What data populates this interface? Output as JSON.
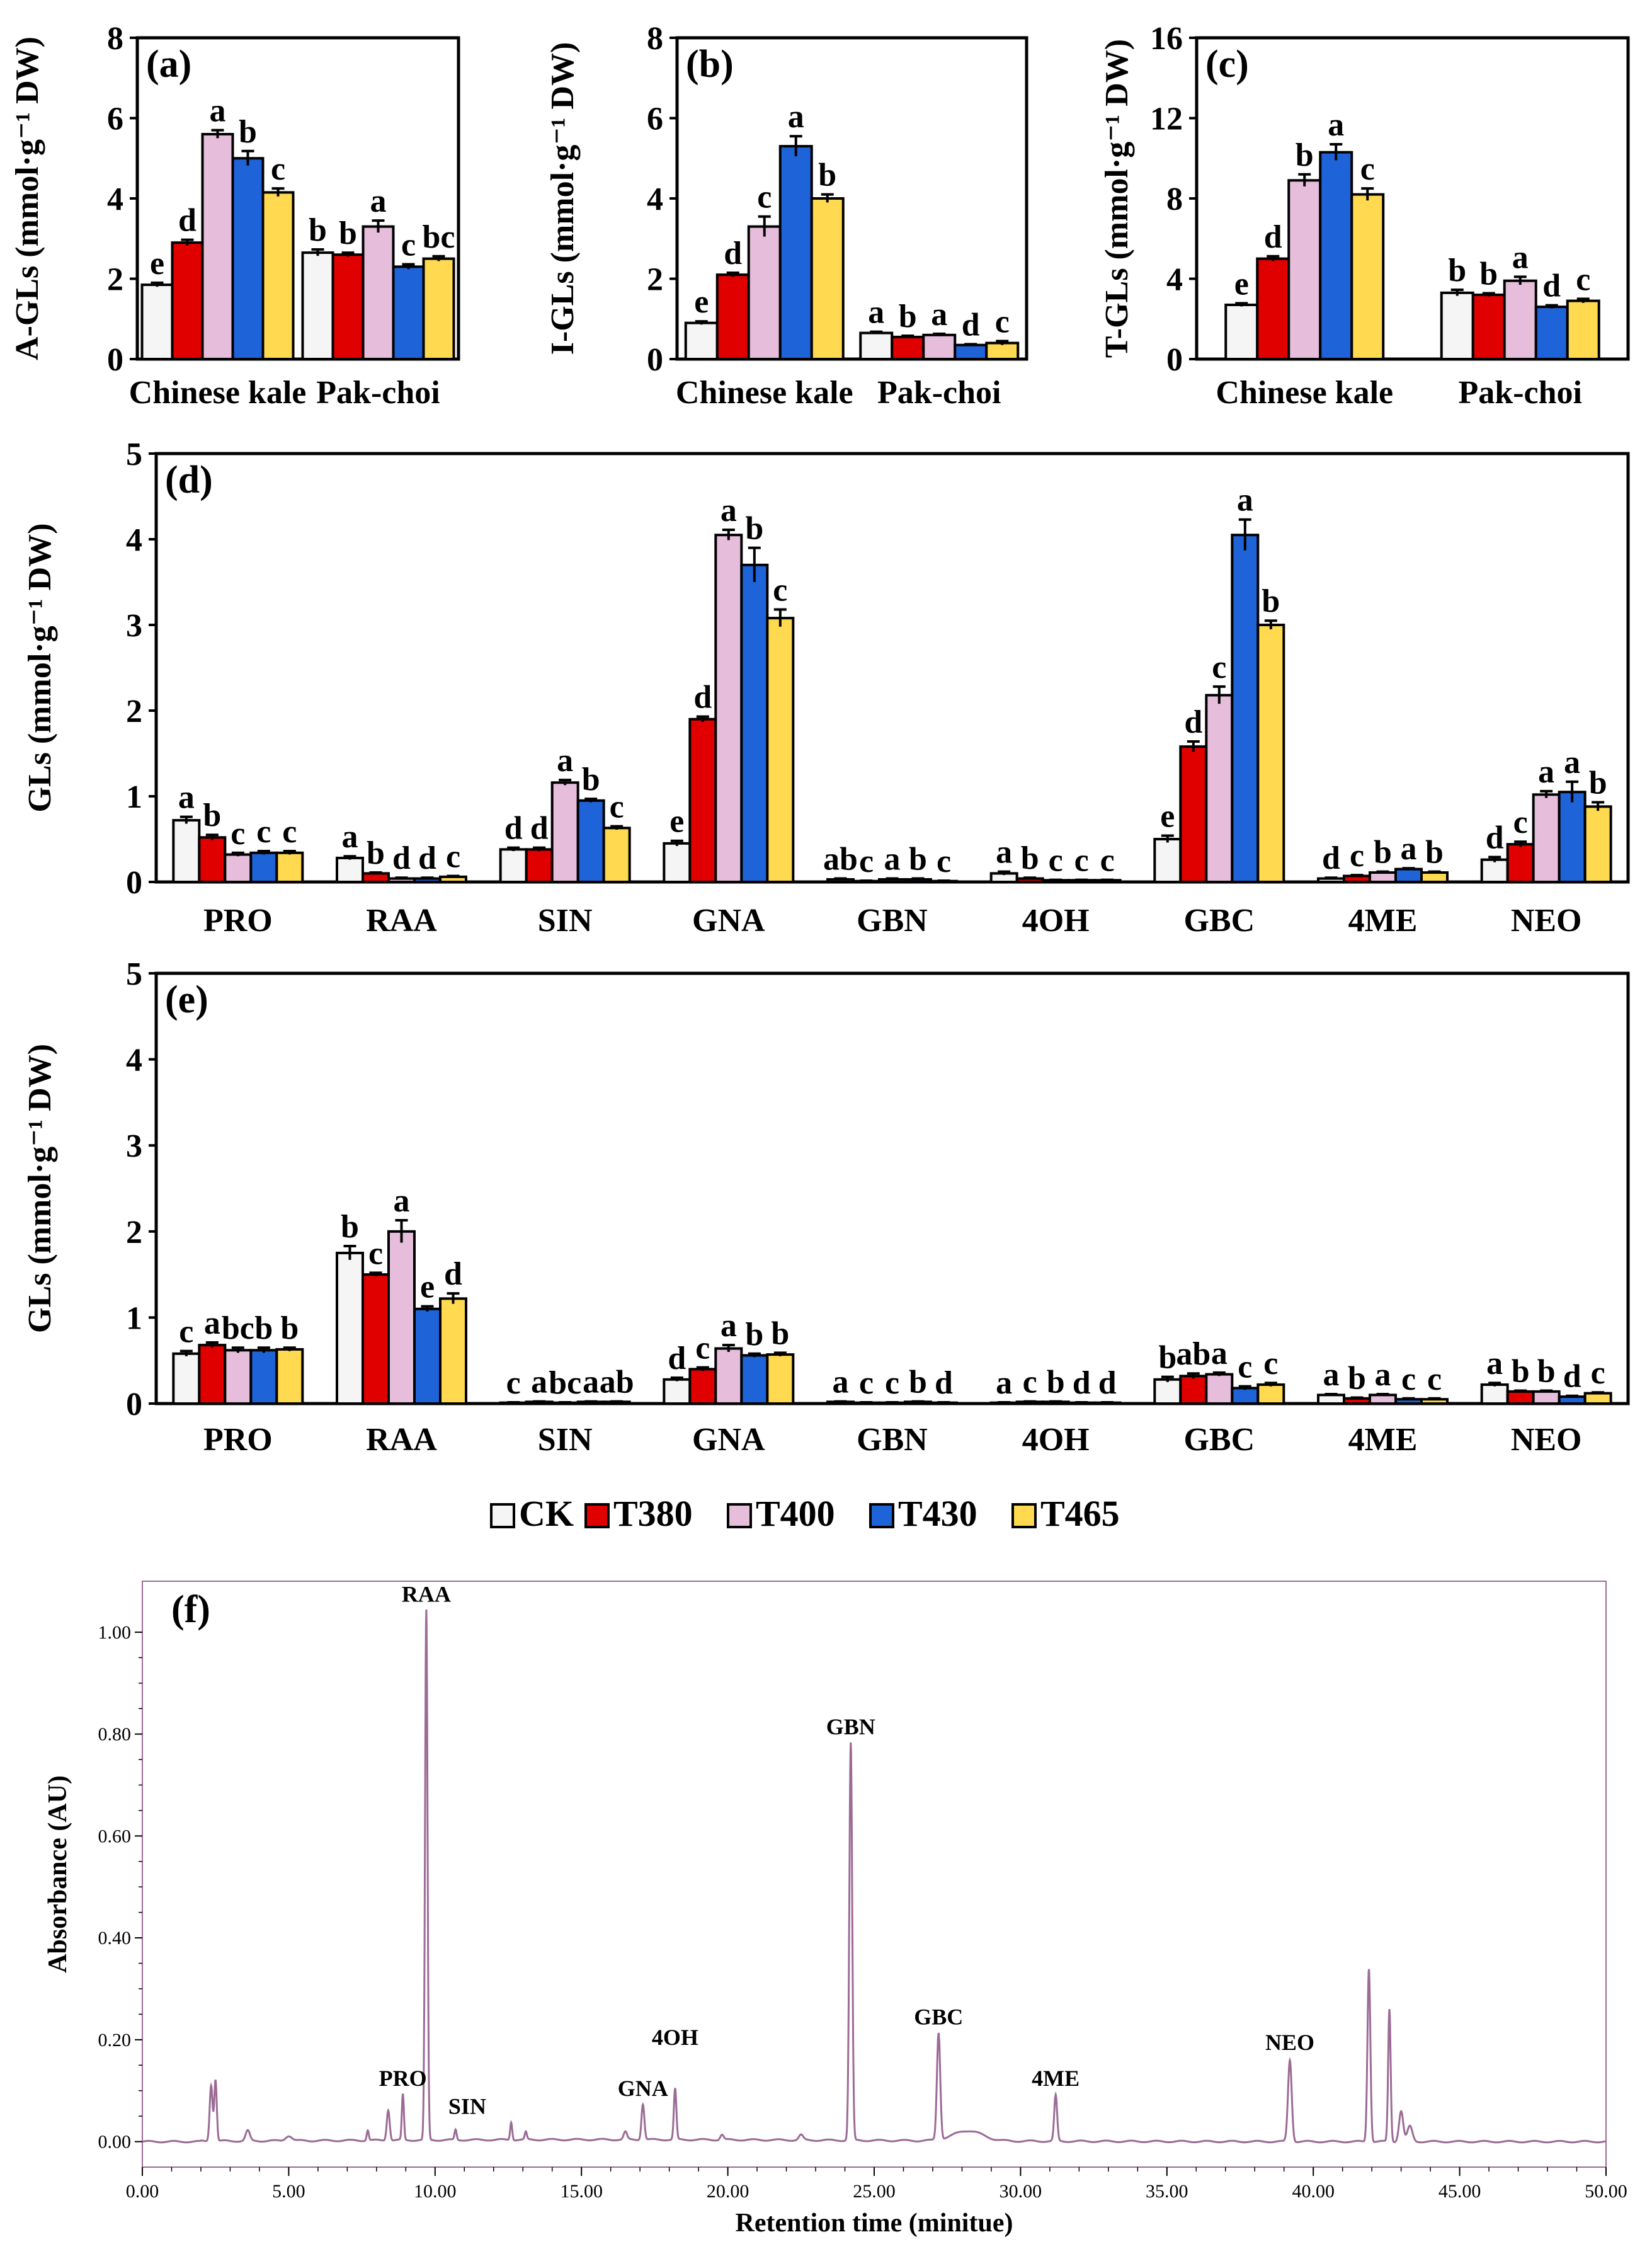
{
  "colors": {
    "CK": "#f5f5f5",
    "T380": "#e00000",
    "T400": "#e6bedc",
    "T430": "#1f63d8",
    "T465": "#ffd94f",
    "chromatogram": "#9b6b96"
  },
  "legend": {
    "items": [
      {
        "key": "CK",
        "label": "CK"
      },
      {
        "key": "T380",
        "label": "T380"
      },
      {
        "key": "T400",
        "label": "T400"
      },
      {
        "key": "T430",
        "label": "T430"
      },
      {
        "key": "T465",
        "label": "T465"
      }
    ]
  },
  "chart_data": [
    {
      "id": "a",
      "type": "bar",
      "panel_label": "(a)",
      "ylabel": "A-GLs (mmol·g⁻¹ DW)",
      "ylim": [
        0,
        8
      ],
      "yticks": [
        "0",
        "2",
        "4",
        "6",
        "8"
      ],
      "categories": [
        "Chinese kale",
        "Pak-choi"
      ],
      "series": [
        {
          "name": "CK",
          "values": [
            1.85,
            2.65
          ],
          "errors": [
            0.05,
            0.08
          ],
          "letters": [
            "e",
            "b"
          ]
        },
        {
          "name": "T380",
          "values": [
            2.9,
            2.6
          ],
          "errors": [
            0.07,
            0.05
          ],
          "letters": [
            "d",
            "b"
          ]
        },
        {
          "name": "T400",
          "values": [
            5.6,
            3.3
          ],
          "errors": [
            0.1,
            0.15
          ],
          "letters": [
            "a",
            "a"
          ]
        },
        {
          "name": "T430",
          "values": [
            5.0,
            2.3
          ],
          "errors": [
            0.18,
            0.06
          ],
          "letters": [
            "b",
            "c"
          ]
        },
        {
          "name": "T465",
          "values": [
            4.15,
            2.5
          ],
          "errors": [
            0.1,
            0.06
          ],
          "letters": [
            "c",
            "bc"
          ]
        }
      ]
    },
    {
      "id": "b",
      "type": "bar",
      "panel_label": "(b)",
      "ylabel": "I-GLs (mmol·g⁻¹ DW)",
      "ylim": [
        0,
        8
      ],
      "yticks": [
        "0",
        "2",
        "4",
        "6",
        "8"
      ],
      "categories": [
        "Chinese kale",
        "Pak-choi"
      ],
      "series": [
        {
          "name": "CK",
          "values": [
            0.9,
            0.65
          ],
          "errors": [
            0.04,
            0.03
          ],
          "letters": [
            "e",
            "a"
          ]
        },
        {
          "name": "T380",
          "values": [
            2.1,
            0.55
          ],
          "errors": [
            0.05,
            0.03
          ],
          "letters": [
            "d",
            "b"
          ]
        },
        {
          "name": "T400",
          "values": [
            3.3,
            0.6
          ],
          "errors": [
            0.25,
            0.03
          ],
          "letters": [
            "c",
            "a"
          ]
        },
        {
          "name": "T430",
          "values": [
            5.3,
            0.35
          ],
          "errors": [
            0.25,
            0.02
          ],
          "letters": [
            "a",
            "d"
          ]
        },
        {
          "name": "T465",
          "values": [
            4.0,
            0.4
          ],
          "errors": [
            0.1,
            0.05
          ],
          "letters": [
            "b",
            "c"
          ]
        }
      ]
    },
    {
      "id": "c",
      "type": "bar",
      "panel_label": "(c)",
      "ylabel": "T-GLs (mmol·g⁻¹ DW)",
      "ylim": [
        0,
        16
      ],
      "yticks": [
        "0",
        "4",
        "8",
        "12",
        "16"
      ],
      "categories": [
        "Chinese kale",
        "Pak-choi"
      ],
      "series": [
        {
          "name": "CK",
          "values": [
            2.7,
            3.3
          ],
          "errors": [
            0.08,
            0.15
          ],
          "letters": [
            "e",
            "b"
          ]
        },
        {
          "name": "T380",
          "values": [
            5.0,
            3.2
          ],
          "errors": [
            0.12,
            0.08
          ],
          "letters": [
            "d",
            "b"
          ]
        },
        {
          "name": "T400",
          "values": [
            8.9,
            3.9
          ],
          "errors": [
            0.3,
            0.2
          ],
          "letters": [
            "b",
            "a"
          ]
        },
        {
          "name": "T430",
          "values": [
            10.3,
            2.6
          ],
          "errors": [
            0.4,
            0.08
          ],
          "letters": [
            "a",
            "d"
          ]
        },
        {
          "name": "T465",
          "values": [
            8.2,
            2.9
          ],
          "errors": [
            0.3,
            0.1
          ],
          "letters": [
            "c",
            "c"
          ]
        }
      ]
    },
    {
      "id": "d",
      "type": "bar",
      "panel_label": "(d)",
      "ylabel": "GLs (mmol·g⁻¹ DW)",
      "ylim": [
        0,
        5
      ],
      "yticks": [
        "0",
        "1",
        "2",
        "3",
        "4",
        "5"
      ],
      "categories": [
        "PRO",
        "RAA",
        "SIN",
        "GNA",
        "GBN",
        "4OH",
        "GBC",
        "4ME",
        "NEO"
      ],
      "series": [
        {
          "name": "CK",
          "values": [
            0.72,
            0.28,
            0.38,
            0.45,
            0.03,
            0.1,
            0.5,
            0.04,
            0.26
          ],
          "errors": [
            0.04,
            0.02,
            0.02,
            0.03,
            0.01,
            0.02,
            0.04,
            0.01,
            0.03
          ],
          "letters": [
            "a",
            "a",
            "d",
            "e",
            "ab",
            "a",
            "e",
            "d",
            "d"
          ]
        },
        {
          "name": "T380",
          "values": [
            0.52,
            0.1,
            0.38,
            1.9,
            0.01,
            0.04,
            1.58,
            0.07,
            0.44
          ],
          "errors": [
            0.03,
            0.01,
            0.02,
            0.03,
            0.005,
            0.01,
            0.06,
            0.01,
            0.03
          ],
          "letters": [
            "b",
            "b",
            "d",
            "d",
            "c",
            "b",
            "d",
            "c",
            "c"
          ]
        },
        {
          "name": "T400",
          "values": [
            0.32,
            0.04,
            1.16,
            4.05,
            0.03,
            0.02,
            2.18,
            0.11,
            1.02
          ],
          "errors": [
            0.02,
            0.01,
            0.03,
            0.06,
            0.01,
            0.005,
            0.1,
            0.01,
            0.04
          ],
          "letters": [
            "c",
            "d",
            "a",
            "a",
            "a",
            "c",
            "c",
            "b",
            "a"
          ]
        },
        {
          "name": "T430",
          "values": [
            0.34,
            0.04,
            0.95,
            3.7,
            0.03,
            0.02,
            4.05,
            0.15,
            1.05
          ],
          "errors": [
            0.02,
            0.01,
            0.02,
            0.2,
            0.01,
            0.005,
            0.18,
            0.01,
            0.12
          ],
          "letters": [
            "c",
            "d",
            "b",
            "b",
            "b",
            "c",
            "a",
            "a",
            "a"
          ]
        },
        {
          "name": "T465",
          "values": [
            0.34,
            0.06,
            0.63,
            3.08,
            0.01,
            0.02,
            3.0,
            0.11,
            0.88
          ],
          "errors": [
            0.02,
            0.01,
            0.02,
            0.1,
            0.005,
            0.005,
            0.05,
            0.01,
            0.05
          ],
          "letters": [
            "c",
            "c",
            "c",
            "c",
            "c",
            "c",
            "b",
            "b",
            "b"
          ]
        }
      ]
    },
    {
      "id": "e",
      "type": "bar",
      "panel_label": "(e)",
      "ylabel": "GLs (mmol·g⁻¹ DW)",
      "ylim": [
        0,
        5
      ],
      "yticks": [
        "0",
        "1",
        "2",
        "3",
        "4",
        "5"
      ],
      "categories": [
        "PRO",
        "RAA",
        "SIN",
        "GNA",
        "GBN",
        "4OH",
        "GBC",
        "4ME",
        "NEO"
      ],
      "series": [
        {
          "name": "CK",
          "values": [
            0.58,
            1.75,
            0.01,
            0.28,
            0.02,
            0.01,
            0.28,
            0.1,
            0.22
          ],
          "errors": [
            0.03,
            0.08,
            0.005,
            0.02,
            0.005,
            0.005,
            0.03,
            0.01,
            0.02
          ],
          "letters": [
            "c",
            "b",
            "c",
            "d",
            "a",
            "a",
            "b",
            "a",
            "a"
          ]
        },
        {
          "name": "T380",
          "values": [
            0.68,
            1.5,
            0.02,
            0.4,
            0.01,
            0.02,
            0.32,
            0.06,
            0.14
          ],
          "errors": [
            0.03,
            0.02,
            0.005,
            0.02,
            0.005,
            0.005,
            0.03,
            0.01,
            0.01
          ],
          "letters": [
            "a",
            "c",
            "a",
            "c",
            "c",
            "c",
            "ab",
            "b",
            "b"
          ]
        },
        {
          "name": "T400",
          "values": [
            0.62,
            2.0,
            0.01,
            0.64,
            0.01,
            0.02,
            0.34,
            0.1,
            0.14
          ],
          "errors": [
            0.03,
            0.13,
            0.005,
            0.04,
            0.005,
            0.005,
            0.02,
            0.01,
            0.01
          ],
          "letters": [
            "bc",
            "a",
            "bc",
            "a",
            "c",
            "b",
            "a",
            "a",
            "b"
          ]
        },
        {
          "name": "T430",
          "values": [
            0.62,
            1.1,
            0.02,
            0.56,
            0.02,
            0.01,
            0.18,
            0.05,
            0.08
          ],
          "errors": [
            0.03,
            0.03,
            0.005,
            0.02,
            0.005,
            0.005,
            0.02,
            0.01,
            0.01
          ],
          "letters": [
            "b",
            "e",
            "a",
            "b",
            "b",
            "d",
            "c",
            "c",
            "d"
          ]
        },
        {
          "name": "T465",
          "values": [
            0.63,
            1.22,
            0.02,
            0.57,
            0.01,
            0.01,
            0.22,
            0.05,
            0.12
          ],
          "errors": [
            0.02,
            0.06,
            0.005,
            0.02,
            0.005,
            0.005,
            0.02,
            0.01,
            0.01
          ],
          "letters": [
            "b",
            "d",
            "ab",
            "b",
            "d",
            "d",
            "c",
            "c",
            "c"
          ]
        }
      ]
    },
    {
      "id": "f",
      "type": "line",
      "panel_label": "(f)",
      "ylabel": "Absorbance (AU)",
      "xlabel": "Retention time (minitue)",
      "xlim": [
        0,
        50
      ],
      "ylim": [
        -0.05,
        1.1
      ],
      "xticks": [
        "0.00",
        "5.00",
        "10.00",
        "15.00",
        "20.00",
        "25.00",
        "30.00",
        "35.00",
        "40.00",
        "45.00",
        "50.00"
      ],
      "yticks": [
        "0.00",
        "0.20",
        "0.40",
        "0.60",
        "0.80",
        "1.00"
      ],
      "peaks": [
        {
          "t": 2.35,
          "h": 0.11,
          "w": 0.07
        },
        {
          "t": 2.5,
          "h": 0.12,
          "w": 0.06
        },
        {
          "t": 3.6,
          "h": 0.02,
          "w": 0.1
        },
        {
          "t": 5.0,
          "h": 0.01,
          "w": 0.15
        },
        {
          "t": 7.7,
          "h": 0.02,
          "w": 0.05
        },
        {
          "t": 8.4,
          "h": 0.06,
          "w": 0.07
        },
        {
          "t": 8.9,
          "h": 0.09,
          "w": 0.05
        },
        {
          "t": 9.7,
          "h": 1.04,
          "w": 0.06
        },
        {
          "t": 10.7,
          "h": 0.02,
          "w": 0.05
        },
        {
          "t": 12.6,
          "h": 0.035,
          "w": 0.05
        },
        {
          "t": 13.1,
          "h": 0.015,
          "w": 0.05
        },
        {
          "t": 16.5,
          "h": 0.015,
          "w": 0.08
        },
        {
          "t": 17.1,
          "h": 0.07,
          "w": 0.07
        },
        {
          "t": 18.2,
          "h": 0.1,
          "w": 0.06
        },
        {
          "t": 19.8,
          "h": 0.01,
          "w": 0.08
        },
        {
          "t": 22.5,
          "h": 0.01,
          "w": 0.1
        },
        {
          "t": 24.2,
          "h": 0.78,
          "w": 0.07
        },
        {
          "t": 27.2,
          "h": 0.21,
          "w": 0.08
        },
        {
          "t": 28.2,
          "h": 0.02,
          "w": 0.7
        },
        {
          "t": 31.2,
          "h": 0.09,
          "w": 0.07
        },
        {
          "t": 39.2,
          "h": 0.16,
          "w": 0.09
        },
        {
          "t": 41.9,
          "h": 0.34,
          "w": 0.07
        },
        {
          "t": 42.6,
          "h": 0.26,
          "w": 0.06
        },
        {
          "t": 43.0,
          "h": 0.06,
          "w": 0.1
        },
        {
          "t": 43.3,
          "h": 0.03,
          "w": 0.12
        }
      ],
      "annotations": [
        {
          "label": "RAA",
          "t": 9.7,
          "y": 1.04
        },
        {
          "label": "PRO",
          "t": 8.9,
          "y": 0.09
        },
        {
          "label": "SIN",
          "t": 11.1,
          "y": 0.035
        },
        {
          "label": "GNA",
          "t": 17.1,
          "y": 0.07
        },
        {
          "label": "4OH",
          "t": 18.2,
          "y": 0.17
        },
        {
          "label": "GBN",
          "t": 24.2,
          "y": 0.78
        },
        {
          "label": "GBC",
          "t": 27.2,
          "y": 0.21
        },
        {
          "label": "4ME",
          "t": 31.2,
          "y": 0.09
        },
        {
          "label": "NEO",
          "t": 39.2,
          "y": 0.16
        }
      ]
    }
  ]
}
